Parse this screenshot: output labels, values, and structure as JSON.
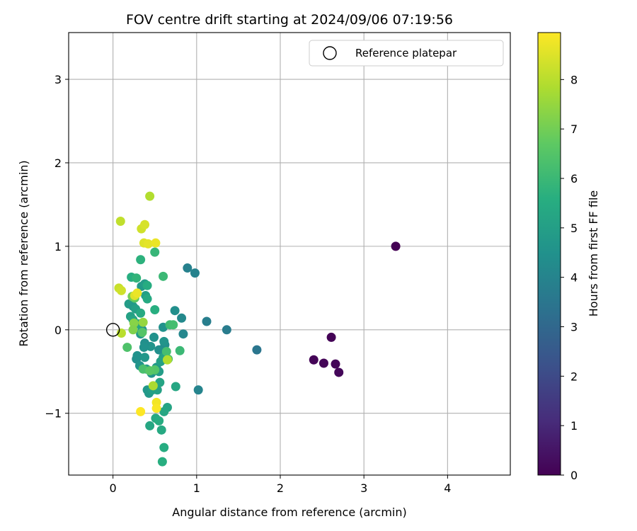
{
  "chart_data": {
    "type": "scatter",
    "title": "FOV centre drift starting at 2024/09/06 07:19:56",
    "xlabel": "Angular distance from reference (arcmin)",
    "ylabel": "Rotation from reference (arcmin)",
    "xlim": [
      -0.53,
      4.75
    ],
    "ylim": [
      -1.74,
      3.56
    ],
    "xticks": [
      0,
      1,
      2,
      3,
      4
    ],
    "yticks": [
      -1,
      0,
      1,
      2,
      3
    ],
    "grid": true,
    "legend": {
      "position": "top-right",
      "entries": [
        "Reference platepar"
      ]
    },
    "reference_point": {
      "x": 0,
      "y": 0
    },
    "colorbar": {
      "label": "Hours from first FF file",
      "min": 0,
      "max": 8.95,
      "ticks": [
        0,
        1,
        2,
        3,
        4,
        5,
        6,
        7,
        8
      ],
      "colormap": "viridis"
    },
    "points": [
      {
        "x": 3.38,
        "y": 1.0,
        "hours": 0.0
      },
      {
        "x": 2.61,
        "y": -0.09,
        "hours": 0.05
      },
      {
        "x": 2.4,
        "y": -0.36,
        "hours": 0.08
      },
      {
        "x": 2.52,
        "y": -0.4,
        "hours": 0.1
      },
      {
        "x": 2.66,
        "y": -0.41,
        "hours": 0.12
      },
      {
        "x": 2.7,
        "y": -0.51,
        "hours": 0.15
      },
      {
        "x": 1.72,
        "y": -0.24,
        "hours": 3.5
      },
      {
        "x": 1.36,
        "y": 0.0,
        "hours": 3.7
      },
      {
        "x": 1.12,
        "y": 0.1,
        "hours": 3.8
      },
      {
        "x": 0.89,
        "y": 0.74,
        "hours": 3.9
      },
      {
        "x": 0.98,
        "y": 0.68,
        "hours": 3.95
      },
      {
        "x": 1.02,
        "y": -0.72,
        "hours": 4.0
      },
      {
        "x": 0.84,
        "y": -0.05,
        "hours": 4.1
      },
      {
        "x": 0.82,
        "y": 0.14,
        "hours": 4.2
      },
      {
        "x": 0.74,
        "y": 0.23,
        "hours": 4.4
      },
      {
        "x": 0.62,
        "y": -0.18,
        "hours": 4.3
      },
      {
        "x": 0.6,
        "y": 0.03,
        "hours": 4.5
      },
      {
        "x": 0.61,
        "y": -0.14,
        "hours": 4.6
      },
      {
        "x": 0.55,
        "y": -0.24,
        "hours": 4.4
      },
      {
        "x": 0.49,
        "y": -0.09,
        "hours": 4.5
      },
      {
        "x": 0.45,
        "y": -0.2,
        "hours": 4.6
      },
      {
        "x": 0.38,
        "y": -0.16,
        "hours": 4.4
      },
      {
        "x": 0.37,
        "y": -0.21,
        "hours": 4.5
      },
      {
        "x": 0.35,
        "y": 0.0,
        "hours": 4.6
      },
      {
        "x": 0.33,
        "y": -0.05,
        "hours": 4.8
      },
      {
        "x": 0.28,
        "y": -0.35,
        "hours": 4.4
      },
      {
        "x": 0.29,
        "y": -0.31,
        "hours": 4.5
      },
      {
        "x": 0.32,
        "y": -0.43,
        "hours": 4.6
      },
      {
        "x": 0.38,
        "y": -0.33,
        "hours": 4.7
      },
      {
        "x": 0.4,
        "y": -0.47,
        "hours": 4.8
      },
      {
        "x": 0.46,
        "y": -0.52,
        "hours": 4.6
      },
      {
        "x": 0.52,
        "y": -0.45,
        "hours": 4.7
      },
      {
        "x": 0.55,
        "y": -0.5,
        "hours": 4.9
      },
      {
        "x": 0.57,
        "y": -0.38,
        "hours": 5.0
      },
      {
        "x": 0.6,
        "y": -0.33,
        "hours": 5.1
      },
      {
        "x": 0.41,
        "y": -0.72,
        "hours": 4.7
      },
      {
        "x": 0.43,
        "y": -0.76,
        "hours": 4.8
      },
      {
        "x": 0.47,
        "y": -0.72,
        "hours": 5.0
      },
      {
        "x": 0.53,
        "y": -0.72,
        "hours": 5.1
      },
      {
        "x": 0.56,
        "y": -0.63,
        "hours": 5.2
      },
      {
        "x": 0.75,
        "y": -0.68,
        "hours": 5.3
      },
      {
        "x": 0.65,
        "y": -0.93,
        "hours": 5.2
      },
      {
        "x": 0.61,
        "y": -0.98,
        "hours": 5.3
      },
      {
        "x": 0.51,
        "y": -1.06,
        "hours": 5.4
      },
      {
        "x": 0.55,
        "y": -1.09,
        "hours": 5.5
      },
      {
        "x": 0.44,
        "y": -1.15,
        "hours": 5.3
      },
      {
        "x": 0.58,
        "y": -1.2,
        "hours": 5.4
      },
      {
        "x": 0.61,
        "y": -1.41,
        "hours": 5.5
      },
      {
        "x": 0.59,
        "y": -1.58,
        "hours": 5.6
      },
      {
        "x": 0.19,
        "y": 0.31,
        "hours": 4.9
      },
      {
        "x": 0.24,
        "y": 0.28,
        "hours": 4.8
      },
      {
        "x": 0.27,
        "y": 0.25,
        "hours": 5.0
      },
      {
        "x": 0.21,
        "y": 0.16,
        "hours": 5.1
      },
      {
        "x": 0.24,
        "y": 0.12,
        "hours": 5.2
      },
      {
        "x": 0.3,
        "y": 0.07,
        "hours": 5.3
      },
      {
        "x": 0.33,
        "y": 0.2,
        "hours": 5.4
      },
      {
        "x": 0.34,
        "y": 0.52,
        "hours": 4.8
      },
      {
        "x": 0.38,
        "y": 0.55,
        "hours": 4.9
      },
      {
        "x": 0.41,
        "y": 0.53,
        "hours": 5.5
      },
      {
        "x": 0.39,
        "y": 0.41,
        "hours": 5.0
      },
      {
        "x": 0.41,
        "y": 0.37,
        "hours": 5.4
      },
      {
        "x": 0.22,
        "y": 0.63,
        "hours": 5.6
      },
      {
        "x": 0.28,
        "y": 0.62,
        "hours": 5.8
      },
      {
        "x": 0.33,
        "y": 0.84,
        "hours": 5.7
      },
      {
        "x": 0.5,
        "y": 0.93,
        "hours": 5.9
      },
      {
        "x": 0.6,
        "y": 0.64,
        "hours": 6.0
      },
      {
        "x": 0.5,
        "y": 0.24,
        "hours": 5.6
      },
      {
        "x": 0.68,
        "y": 0.06,
        "hours": 6.1
      },
      {
        "x": 0.72,
        "y": 0.06,
        "hours": 6.2
      },
      {
        "x": 0.8,
        "y": -0.25,
        "hours": 6.0
      },
      {
        "x": 0.64,
        "y": -0.26,
        "hours": 6.2
      },
      {
        "x": 0.66,
        "y": -0.35,
        "hours": 6.3
      },
      {
        "x": 0.17,
        "y": -0.21,
        "hours": 6.4
      },
      {
        "x": 0.36,
        "y": -0.47,
        "hours": 6.3
      },
      {
        "x": 0.5,
        "y": -0.48,
        "hours": 6.5
      },
      {
        "x": 0.44,
        "y": -0.49,
        "hours": 6.6
      },
      {
        "x": 0.35,
        "y": -0.03,
        "hours": 6.5
      },
      {
        "x": 0.26,
        "y": 0.38,
        "hours": 6.7
      },
      {
        "x": 0.23,
        "y": 0.4,
        "hours": 7.0
      },
      {
        "x": 0.25,
        "y": 0.08,
        "hours": 7.3
      },
      {
        "x": 0.24,
        "y": 0.0,
        "hours": 7.2
      },
      {
        "x": 0.36,
        "y": 0.09,
        "hours": 7.5
      },
      {
        "x": 0.65,
        "y": -0.36,
        "hours": 7.9
      },
      {
        "x": 0.48,
        "y": -0.67,
        "hours": 7.8
      },
      {
        "x": 0.44,
        "y": 1.6,
        "hours": 7.9
      },
      {
        "x": 0.09,
        "y": 1.3,
        "hours": 8.1
      },
      {
        "x": 0.34,
        "y": 1.21,
        "hours": 8.3
      },
      {
        "x": 0.38,
        "y": 1.26,
        "hours": 8.4
      },
      {
        "x": 0.37,
        "y": 1.04,
        "hours": 8.5
      },
      {
        "x": 0.42,
        "y": 1.03,
        "hours": 8.6
      },
      {
        "x": 0.51,
        "y": 1.04,
        "hours": 8.7
      },
      {
        "x": 0.07,
        "y": 0.5,
        "hours": 8.2
      },
      {
        "x": 0.1,
        "y": 0.47,
        "hours": 8.3
      },
      {
        "x": 0.26,
        "y": 0.41,
        "hours": 8.5
      },
      {
        "x": 0.29,
        "y": 0.44,
        "hours": 8.7
      },
      {
        "x": 0.1,
        "y": -0.04,
        "hours": 8.0
      },
      {
        "x": 0.52,
        "y": -0.87,
        "hours": 8.8
      },
      {
        "x": 0.52,
        "y": -0.94,
        "hours": 8.9
      },
      {
        "x": 0.33,
        "y": -0.98,
        "hours": 8.95
      }
    ]
  }
}
